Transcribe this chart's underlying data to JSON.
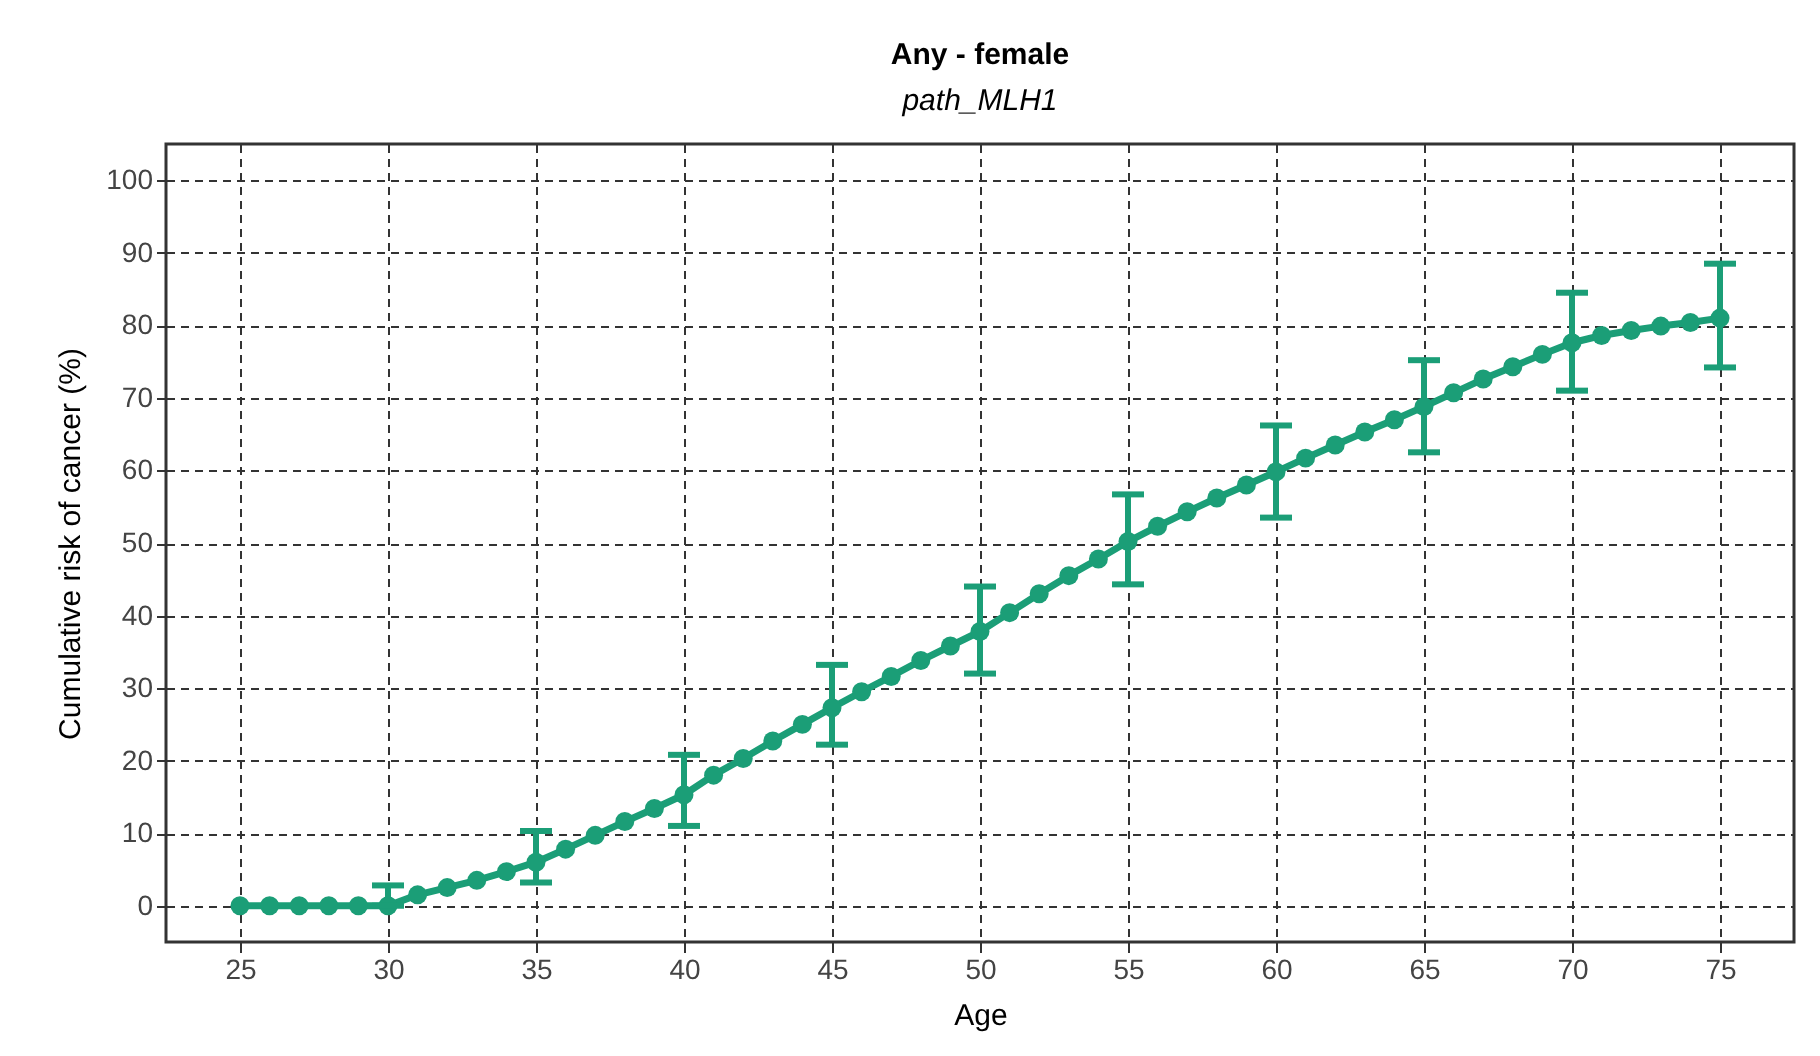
{
  "chart_data": {
    "type": "line",
    "title": "Any - female",
    "subtitle": "path_MLH1",
    "xlabel": "Age",
    "ylabel": "Cumulative risk of cancer (%)",
    "x": [
      25,
      26,
      27,
      28,
      29,
      30,
      31,
      32,
      33,
      34,
      35,
      36,
      37,
      38,
      39,
      40,
      41,
      42,
      43,
      44,
      45,
      46,
      47,
      48,
      49,
      50,
      51,
      52,
      53,
      54,
      55,
      56,
      57,
      58,
      59,
      60,
      61,
      62,
      63,
      64,
      65,
      66,
      67,
      68,
      69,
      70,
      71,
      72,
      73,
      74,
      75
    ],
    "series": [
      {
        "color": "#1b9e77",
        "values": [
          0,
          0,
          0,
          0,
          0,
          0,
          1.5,
          2.5,
          3.5,
          4.7,
          6,
          7.8,
          9.7,
          11.6,
          13.4,
          15.3,
          18,
          20.3,
          22.7,
          25,
          27.3,
          29.5,
          31.6,
          33.8,
          35.8,
          37.8,
          40.4,
          43,
          45.5,
          47.8,
          50.2,
          52.3,
          54.3,
          56.2,
          58,
          59.8,
          61.7,
          63.5,
          65.3,
          67,
          68.8,
          70.7,
          72.6,
          74.3,
          76,
          77.6,
          78.6,
          79.3,
          79.9,
          80.4,
          81
        ],
        "errors": [
          null,
          null,
          null,
          null,
          null,
          [
            0,
            2.8
          ],
          null,
          null,
          null,
          null,
          [
            3.2,
            10.3
          ],
          null,
          null,
          null,
          null,
          [
            11,
            20.8
          ],
          null,
          null,
          null,
          null,
          [
            22.2,
            33.2
          ],
          null,
          null,
          null,
          null,
          [
            32,
            44
          ],
          null,
          null,
          null,
          null,
          [
            44.3,
            56.7
          ],
          null,
          null,
          null,
          null,
          [
            53.5,
            66.2
          ],
          null,
          null,
          null,
          null,
          [
            62.5,
            75.2
          ],
          null,
          null,
          null,
          null,
          [
            71,
            84.5
          ],
          null,
          null,
          null,
          null,
          [
            74.2,
            88.5
          ]
        ]
      }
    ],
    "xlim": [
      22.5,
      77.5
    ],
    "xticks": [
      25,
      30,
      35,
      40,
      45,
      50,
      55,
      60,
      65,
      70,
      75
    ],
    "ylim": [
      -5,
      105
    ],
    "yticks": [
      0,
      10,
      20,
      30,
      40,
      50,
      60,
      70,
      80,
      90,
      100
    ],
    "grid": true,
    "marker": "circle",
    "line_style": "solid"
  }
}
